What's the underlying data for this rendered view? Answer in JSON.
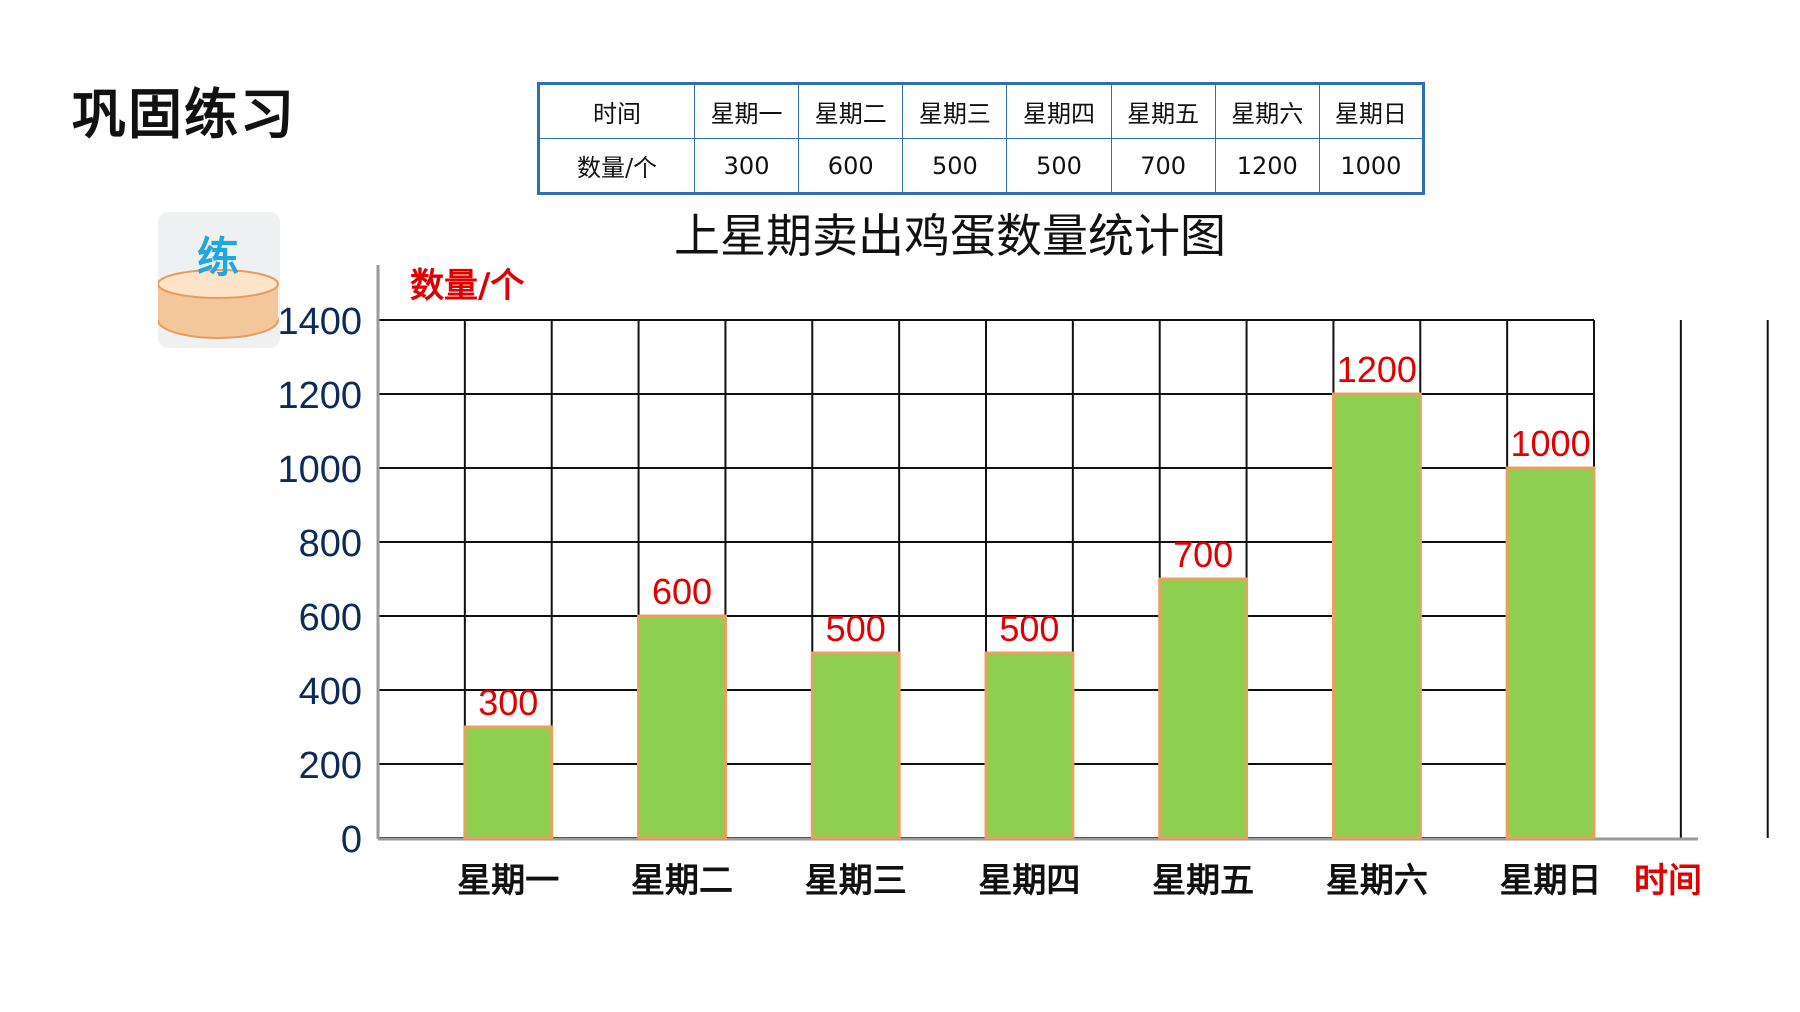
{
  "heading": "巩固练习",
  "badge_label": "练",
  "table": {
    "header_label": "时间",
    "row_label": "数量/个",
    "days": [
      "星期一",
      "星期二",
      "星期三",
      "星期四",
      "星期五",
      "星期六",
      "星期日"
    ],
    "values": [
      "300",
      "600",
      "500",
      "500",
      "700",
      "1200",
      "1000"
    ]
  },
  "colors": {
    "bar_fill": "#8ecf4f",
    "bar_edge": "#e8a060",
    "label_red": "#e00000",
    "axis_blue": "#0d2a5a",
    "table_border": "#2f6db6"
  },
  "chart_data": {
    "type": "bar",
    "title": "上星期卖出鸡蛋数量统计图",
    "ylabel": "数量/个",
    "xlabel": "时间",
    "categories": [
      "星期一",
      "星期二",
      "星期三",
      "星期四",
      "星期五",
      "星期六",
      "星期日"
    ],
    "values": [
      300,
      600,
      500,
      500,
      700,
      1200,
      1000
    ],
    "ylim": [
      0,
      1400
    ],
    "yticks": [
      0,
      200,
      400,
      600,
      800,
      1000,
      1200,
      1400
    ],
    "grid": true
  }
}
